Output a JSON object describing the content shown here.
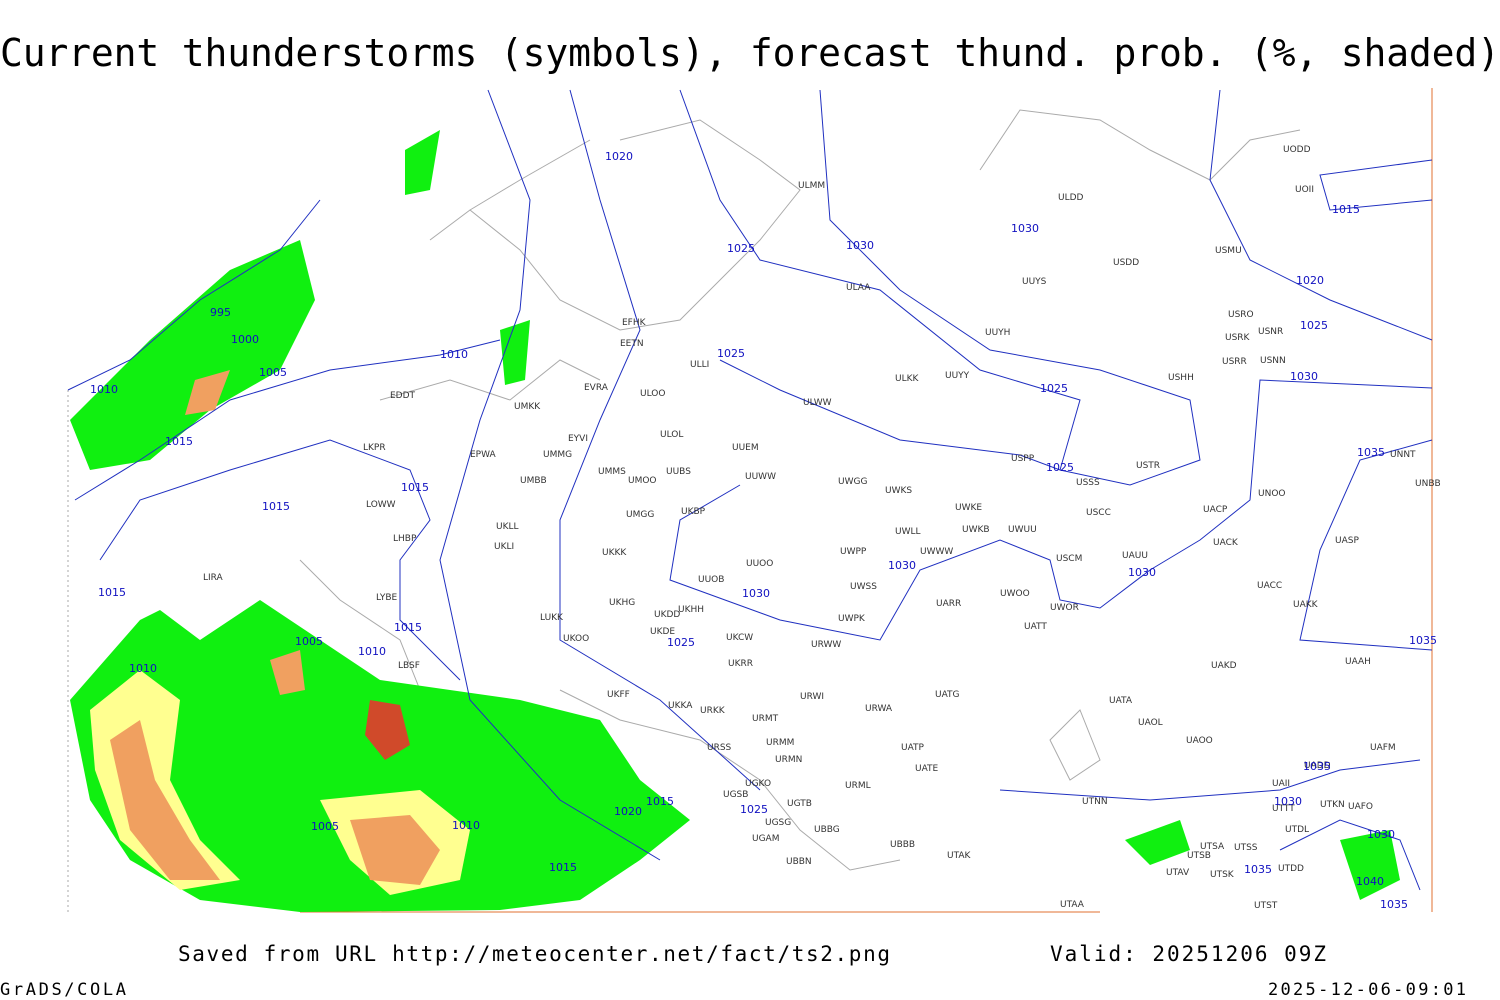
{
  "title": "Current thunderstorms (symbols), forecast thund. prob. (%, shaded)",
  "footer": {
    "source": "Saved from URL http://meteocenter.net/fact/ts2.png",
    "valid": "Valid: 20251206 09Z",
    "software": "GrADS/COLA",
    "timestamp": "2025-12-06-09:01"
  },
  "stations": [
    "ULMM",
    "ULDD",
    "UUYS",
    "USDD",
    "USMU",
    "UODD",
    "UOII",
    "ULAA",
    "UUYH",
    "USRO",
    "USRK",
    "USNR",
    "USRR",
    "USNN",
    "EFHK",
    "EETN",
    "ULLI",
    "ULKK",
    "UUYY",
    "USHH",
    "EVRA",
    "ULOO",
    "ULWW",
    "EDDT",
    "UMKK",
    "ULOL",
    "EYVI",
    "UUEM",
    "LKPR",
    "EPWA",
    "UMMG",
    "USPP",
    "USTR",
    "UNNT",
    "UMMS",
    "UMOO",
    "UUBS",
    "UUWW",
    "UWGG",
    "UWKS",
    "USSS",
    "UNBB",
    "UMBB",
    "LOWW",
    "UKLL",
    "UKBP",
    "UWKE",
    "USCC",
    "UACP",
    "UNOO",
    "UMGG",
    "UWLL",
    "UWKB",
    "UWUU",
    "LHBP",
    "UKLI",
    "UWPP",
    "UWWW",
    "UACK",
    "UASP",
    "LIRA",
    "UKKK",
    "UUOO",
    "USCM",
    "UAUU",
    "UUOB",
    "UWSS",
    "UACC",
    "LYBE",
    "UKHH",
    "UKHG",
    "UKDD",
    "UWOO",
    "UWOR",
    "UARR",
    "UAKK",
    "LUKK",
    "UWPK",
    "UATT",
    "UKDE",
    "UKOO",
    "UKCW",
    "URWW",
    "LBSF",
    "UKFF",
    "UKRR",
    "UAKD",
    "UAAH",
    "URWI",
    "UATG",
    "URWA",
    "UATA",
    "UKKA",
    "URKK",
    "URMT",
    "UAOL",
    "UAOO",
    "URSS",
    "URMM",
    "UATP",
    "URMN",
    "UATE",
    "UAFM",
    "UADD",
    "UGKO",
    "URML",
    "UGSB",
    "UGTB",
    "UAII",
    "UTNN",
    "UTTT",
    "UTKN",
    "UAFO",
    "UGSG",
    "UBBG",
    "UTDL",
    "UGAM",
    "UBBB",
    "UTSA",
    "UTSS",
    "UTAK",
    "UTSB",
    "UBBN",
    "UTDD",
    "UTAV",
    "UTSK",
    "UTAA",
    "UTST"
  ],
  "isobar_labels": [
    "1020",
    "1025",
    "1030",
    "1030",
    "1015",
    "1020",
    "1025",
    "1030",
    "995",
    "1000",
    "1005",
    "1010",
    "1015",
    "1010",
    "1025",
    "1025",
    "1025",
    "1015",
    "1015",
    "1030",
    "1030",
    "1030",
    "1015",
    "1015",
    "1035",
    "1005",
    "1010",
    "1010",
    "1025",
    "1035",
    "1035",
    "1015",
    "1020",
    "1025",
    "1030",
    "1005",
    "1010",
    "1015",
    "1030",
    "1035",
    "1040",
    "1035"
  ]
}
